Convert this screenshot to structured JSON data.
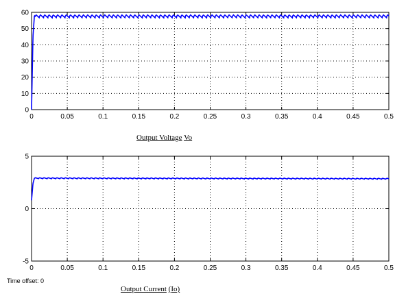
{
  "chart_data": [
    {
      "type": "line",
      "caption_main": "Output Voltage",
      "caption_symbol": "Vo",
      "xlim": [
        0,
        0.5
      ],
      "ylim": [
        0,
        60
      ],
      "x_ticks": [
        0,
        0.05,
        0.1,
        0.15,
        0.2,
        0.25,
        0.3,
        0.35,
        0.4,
        0.45,
        0.5
      ],
      "x_tick_labels": [
        "0",
        "0.05",
        "0.1",
        "0.15",
        "0.2",
        "0.25",
        "0.3",
        "0.35",
        "0.4",
        "0.45",
        "0.5"
      ],
      "y_ticks": [
        0,
        10,
        20,
        30,
        40,
        50,
        60
      ],
      "y_tick_labels": [
        "0",
        "10",
        "20",
        "30",
        "40",
        "50",
        "60"
      ],
      "grid": true,
      "grid_style": "dotted",
      "series": [
        {
          "color": "#0000ff",
          "x": [
            0,
            0.002,
            0.004,
            0.005,
            0.5
          ],
          "y": [
            0,
            45,
            58,
            57.5,
            57.5
          ],
          "ripple_amplitude": 1.5,
          "ripple_period": 0.006
        }
      ]
    },
    {
      "type": "line",
      "caption_main": "Output Current",
      "caption_symbol": "(Io)",
      "xlim": [
        0,
        0.5
      ],
      "ylim": [
        -5,
        5
      ],
      "x_ticks": [
        0,
        0.05,
        0.1,
        0.15,
        0.2,
        0.25,
        0.3,
        0.35,
        0.4,
        0.45,
        0.5
      ],
      "x_tick_labels": [
        "0",
        "0.05",
        "0.1",
        "0.15",
        "0.2",
        "0.25",
        "0.3",
        "0.35",
        "0.4",
        "0.45",
        "0.5"
      ],
      "y_ticks": [
        -5,
        0,
        5
      ],
      "y_tick_labels": [
        "-5",
        "0",
        "5"
      ],
      "grid": true,
      "grid_style": "dotted",
      "series": [
        {
          "color": "#0000ff",
          "x": [
            0,
            0.002,
            0.004,
            0.5
          ],
          "y": [
            0.8,
            2.4,
            2.9,
            2.85
          ],
          "ripple_amplitude": 0.08,
          "ripple_period": 0.006
        }
      ]
    }
  ],
  "time_offset": "Time offset:  0"
}
